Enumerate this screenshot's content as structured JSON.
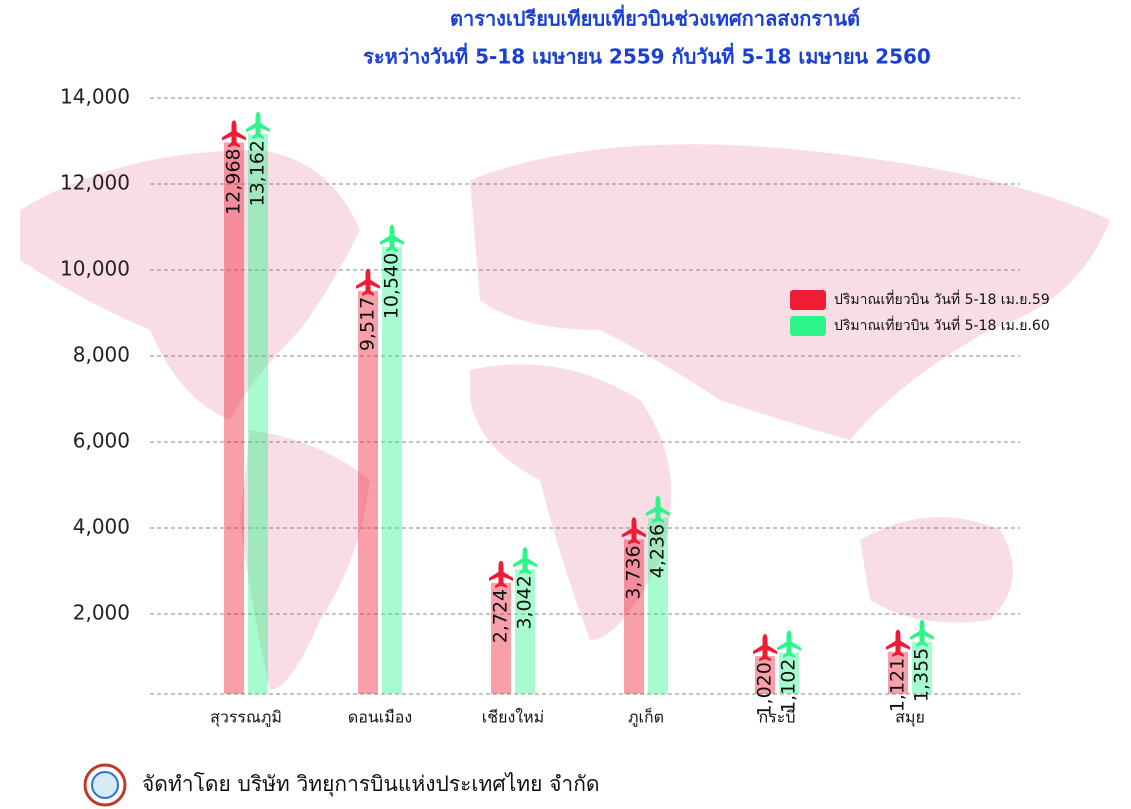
{
  "chart_data": {
    "type": "bar",
    "title": "ตารางเปรียบเทียบเที่ยวบินช่วงเทศกาลสงกรานต์",
    "subtitle": "ระหว่างวันที่ 5-18 เมษายน 2559 กับวันที่ 5-18 เมษายน 2560",
    "categories": [
      "สุวรรณภูมิ",
      "ดอนเมือง",
      "เชียงใหม่",
      "ภูเก็ต",
      "กระบี่",
      "สมุย"
    ],
    "series": [
      {
        "name": "ปริมาณเที่ยวบิน วันที่ 5-18 เม.ย.59",
        "color": "#ee1c34",
        "values": [
          12968,
          9517,
          2724,
          3736,
          1020,
          1121
        ],
        "value_labels": [
          "12,968",
          "9,517",
          "2,724",
          "3,736",
          "1,020",
          "1,121"
        ]
      },
      {
        "name": "ปริมาณเที่ยวบิน วันที่ 5-18 เม.ย.60",
        "color": "#2ef58a",
        "values": [
          13162,
          10540,
          3042,
          4236,
          1102,
          1355
        ],
        "value_labels": [
          "13,162",
          "10,540",
          "3,042",
          "4,236",
          "1,102",
          "1,355"
        ]
      }
    ],
    "ylim": [
      0,
      14000
    ],
    "yticks": [
      {
        "value": 2000,
        "label": "2,000"
      },
      {
        "value": 4000,
        "label": "4,000"
      },
      {
        "value": 6000,
        "label": "6,000"
      },
      {
        "value": 8000,
        "label": "8,000"
      },
      {
        "value": 10000,
        "label": "10,000"
      },
      {
        "value": 12000,
        "label": "12,000"
      },
      {
        "value": 14000,
        "label": "14,000"
      }
    ],
    "grid": true,
    "legend": "right",
    "footer": "จัดทำโดย บริษัท วิทยุการบินแห่งประเทศไทย จำกัด"
  }
}
